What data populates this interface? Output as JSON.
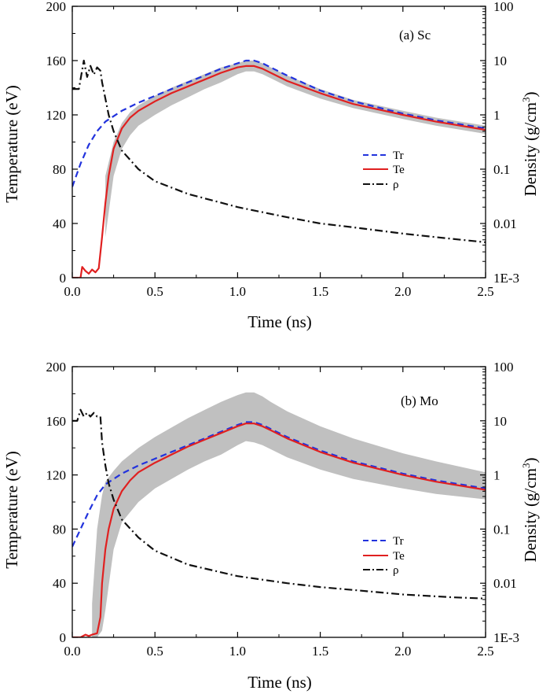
{
  "figure": {
    "panels": [
      {
        "panel_label": "(a) Sc",
        "xlabel": "Time (ns)",
        "ylabel_left": "Temperature (eV)",
        "ylabel_right_main": "Density (g/cm",
        "ylabel_right_sup": "3",
        "ylabel_right_tail": ")",
        "x_ticks": [
          "0.0",
          "0.5",
          "1.0",
          "1.5",
          "2.0",
          "2.5"
        ],
        "y_left_ticks": [
          "0",
          "40",
          "80",
          "120",
          "160",
          "200"
        ],
        "y_right_ticks": [
          "1E-3",
          "0.01",
          "0.1",
          "1",
          "10",
          "100"
        ],
        "legend": [
          "Tr",
          "Te",
          "ρ"
        ]
      },
      {
        "panel_label": "(b) Mo",
        "xlabel": "Time (ns)",
        "ylabel_left": "Temperature (eV)",
        "ylabel_right_main": "Density (g/cm",
        "ylabel_right_sup": "3",
        "ylabel_right_tail": ")",
        "x_ticks": [
          "0.0",
          "0.5",
          "1.0",
          "1.5",
          "2.0",
          "2.5"
        ],
        "y_left_ticks": [
          "0",
          "40",
          "80",
          "120",
          "160",
          "200"
        ],
        "y_right_ticks": [
          "1E-3",
          "0.01",
          "0.1",
          "1",
          "10",
          "100"
        ],
        "legend": [
          "Tr",
          "Te",
          "ρ"
        ]
      }
    ]
  },
  "chart_data": [
    {
      "type": "line",
      "title": "(a) Sc",
      "xlabel": "Time (ns)",
      "ylabel": "Temperature (eV)",
      "y2label": "Density (g/cm3)",
      "xlim": [
        0,
        2.5
      ],
      "ylim": [
        0,
        200
      ],
      "y2lim": [
        0.001,
        100
      ],
      "y2scale": "log",
      "grid": false,
      "legend_position": "right-middle",
      "colors": {
        "Tr": "#2233dd",
        "Te": "#e02020",
        "rho": "#111111",
        "band": "#c0c0c0"
      },
      "series": [
        {
          "name": "Tr",
          "axis": "left",
          "style": "dashed",
          "x": [
            0,
            0.05,
            0.1,
            0.15,
            0.2,
            0.3,
            0.4,
            0.5,
            0.6,
            0.7,
            0.8,
            0.9,
            1.0,
            1.05,
            1.1,
            1.15,
            1.2,
            1.3,
            1.5,
            1.7,
            2.0,
            2.2,
            2.5
          ],
          "y": [
            67,
            84,
            98,
            108,
            115,
            123,
            129,
            134,
            139,
            144,
            149,
            154,
            158,
            160,
            160,
            158,
            155,
            149,
            138,
            130,
            121,
            116,
            110
          ]
        },
        {
          "name": "Te",
          "axis": "left",
          "style": "solid",
          "x": [
            0,
            0.05,
            0.06,
            0.08,
            0.1,
            0.12,
            0.14,
            0.16,
            0.18,
            0.2,
            0.22,
            0.25,
            0.3,
            0.35,
            0.4,
            0.5,
            0.6,
            0.7,
            0.8,
            0.9,
            1.0,
            1.05,
            1.1,
            1.15,
            1.2,
            1.3,
            1.5,
            1.7,
            2.0,
            2.2,
            2.5
          ],
          "y": [
            0,
            0,
            8,
            5,
            3,
            6,
            4,
            7,
            30,
            55,
            75,
            95,
            110,
            118,
            123,
            130,
            136,
            141,
            146,
            151,
            155,
            156,
            156,
            154,
            151,
            145,
            136,
            128,
            120,
            115,
            109
          ]
        },
        {
          "name": "ρ",
          "axis": "right",
          "style": "dash-dot",
          "x": [
            0,
            0.04,
            0.05,
            0.07,
            0.09,
            0.11,
            0.13,
            0.15,
            0.17,
            0.18,
            0.2,
            0.22,
            0.25,
            0.3,
            0.4,
            0.5,
            0.7,
            1.0,
            1.3,
            1.5,
            1.7,
            2.0,
            2.3,
            2.5
          ],
          "y": [
            3.0,
            3.0,
            4.5,
            10,
            5,
            8,
            5.5,
            7.5,
            6.5,
            4,
            2,
            1.0,
            0.5,
            0.22,
            0.1,
            0.06,
            0.035,
            0.02,
            0.013,
            0.01,
            0.0085,
            0.0065,
            0.0052,
            0.0045
          ]
        },
        {
          "name": "",
          "kind": "uncertainty-band",
          "axis": "left",
          "x": [
            0.2,
            0.25,
            0.3,
            0.35,
            0.4,
            0.5,
            0.6,
            0.7,
            0.8,
            0.9,
            1.0,
            1.05,
            1.1,
            1.15,
            1.2,
            1.3,
            1.5,
            1.7,
            2.0,
            2.2,
            2.5
          ],
          "upper": [
            75,
            100,
            114,
            122,
            127,
            134,
            140,
            145,
            150,
            155,
            158,
            160,
            160,
            158,
            155,
            149,
            139,
            131,
            123,
            118,
            112
          ],
          "lower": [
            30,
            75,
            95,
            105,
            112,
            120,
            127,
            133,
            139,
            144,
            150,
            152,
            152,
            150,
            147,
            141,
            132,
            125,
            117,
            112,
            106
          ]
        }
      ]
    },
    {
      "type": "line",
      "title": "(b) Mo",
      "xlabel": "Time (ns)",
      "ylabel": "Temperature (eV)",
      "y2label": "Density (g/cm3)",
      "xlim": [
        0,
        2.5
      ],
      "ylim": [
        0,
        200
      ],
      "y2lim": [
        0.001,
        100
      ],
      "y2scale": "log",
      "grid": false,
      "legend_position": "right-middle",
      "colors": {
        "Tr": "#2233dd",
        "Te": "#e02020",
        "rho": "#111111",
        "band": "#c0c0c0"
      },
      "series": [
        {
          "name": "Tr",
          "axis": "left",
          "style": "dashed",
          "x": [
            0,
            0.05,
            0.1,
            0.15,
            0.2,
            0.3,
            0.4,
            0.5,
            0.6,
            0.7,
            0.8,
            0.9,
            1.0,
            1.05,
            1.1,
            1.15,
            1.2,
            1.3,
            1.5,
            1.7,
            2.0,
            2.2,
            2.5
          ],
          "y": [
            67,
            80,
            93,
            105,
            113,
            121,
            127,
            132,
            137,
            142,
            147,
            152,
            157,
            159,
            159,
            157,
            154,
            148,
            138,
            130,
            121,
            116,
            110
          ]
        },
        {
          "name": "Te",
          "axis": "left",
          "style": "solid",
          "x": [
            0,
            0.05,
            0.08,
            0.1,
            0.12,
            0.15,
            0.17,
            0.18,
            0.2,
            0.22,
            0.25,
            0.3,
            0.35,
            0.4,
            0.5,
            0.6,
            0.7,
            0.8,
            0.9,
            1.0,
            1.05,
            1.1,
            1.15,
            1.2,
            1.3,
            1.5,
            1.7,
            2.0,
            2.2,
            2.5
          ],
          "y": [
            0,
            0,
            2,
            1,
            2,
            3,
            15,
            40,
            65,
            80,
            95,
            108,
            116,
            122,
            129,
            135,
            141,
            146,
            151,
            156,
            158,
            158,
            156,
            153,
            147,
            137,
            129,
            120,
            115,
            109
          ]
        },
        {
          "name": "ρ",
          "axis": "right",
          "style": "dash-dot",
          "x": [
            0,
            0.03,
            0.05,
            0.07,
            0.09,
            0.11,
            0.13,
            0.15,
            0.17,
            0.18,
            0.2,
            0.22,
            0.25,
            0.3,
            0.4,
            0.5,
            0.7,
            1.0,
            1.3,
            1.5,
            1.7,
            2.0,
            2.3,
            2.5
          ],
          "y": [
            10,
            10,
            16,
            12,
            14,
            12,
            14,
            12,
            12,
            4,
            1.5,
            0.7,
            0.35,
            0.15,
            0.07,
            0.04,
            0.022,
            0.0135,
            0.01,
            0.0085,
            0.0075,
            0.0062,
            0.0055,
            0.0052
          ]
        },
        {
          "name": "",
          "kind": "uncertainty-band",
          "axis": "left",
          "x": [
            0.12,
            0.15,
            0.18,
            0.2,
            0.25,
            0.3,
            0.4,
            0.5,
            0.6,
            0.7,
            0.8,
            0.9,
            1.0,
            1.05,
            1.1,
            1.15,
            1.2,
            1.3,
            1.5,
            1.7,
            2.0,
            2.2,
            2.5
          ],
          "upper": [
            25,
            80,
            105,
            115,
            123,
            130,
            140,
            148,
            155,
            162,
            168,
            174,
            179,
            181,
            181,
            178,
            174,
            167,
            156,
            147,
            136,
            130,
            122
          ],
          "lower": [
            0,
            0,
            5,
            20,
            65,
            85,
            100,
            110,
            117,
            124,
            130,
            135,
            142,
            145,
            144,
            142,
            139,
            133,
            124,
            117,
            110,
            106,
            102
          ]
        }
      ]
    }
  ]
}
